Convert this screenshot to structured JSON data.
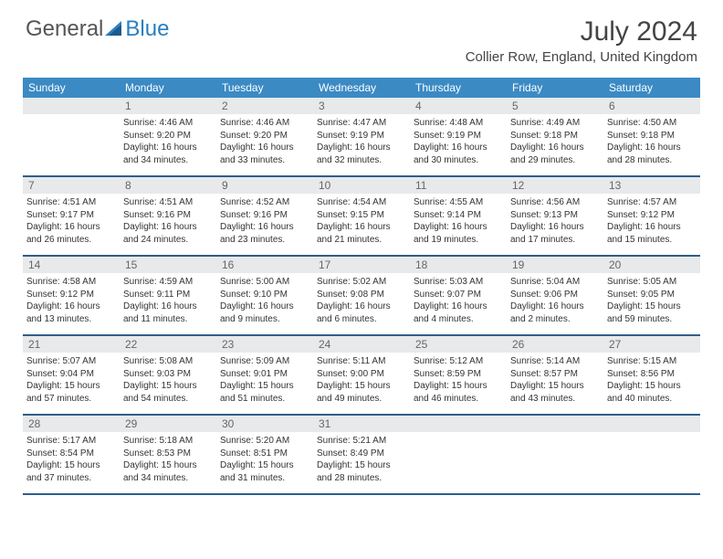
{
  "logo": {
    "general": "General",
    "blue": "Blue"
  },
  "title": {
    "month_year": "July 2024",
    "location": "Collier Row, England, United Kingdom"
  },
  "colors": {
    "header_bg": "#3b8ac4",
    "header_text": "#ffffff",
    "daynum_bg": "#e7e9eb",
    "daynum_text": "#666666",
    "row_divider": "#2f5e8a",
    "logo_blue": "#2a7fbf",
    "logo_gray": "#555555"
  },
  "weekdays": [
    "Sunday",
    "Monday",
    "Tuesday",
    "Wednesday",
    "Thursday",
    "Friday",
    "Saturday"
  ],
  "weeks": [
    {
      "nums": [
        "",
        "1",
        "2",
        "3",
        "4",
        "5",
        "6"
      ],
      "cells": [
        {},
        {
          "sunrise": "Sunrise: 4:46 AM",
          "sunset": "Sunset: 9:20 PM",
          "daylight": "Daylight: 16 hours and 34 minutes."
        },
        {
          "sunrise": "Sunrise: 4:46 AM",
          "sunset": "Sunset: 9:20 PM",
          "daylight": "Daylight: 16 hours and 33 minutes."
        },
        {
          "sunrise": "Sunrise: 4:47 AM",
          "sunset": "Sunset: 9:19 PM",
          "daylight": "Daylight: 16 hours and 32 minutes."
        },
        {
          "sunrise": "Sunrise: 4:48 AM",
          "sunset": "Sunset: 9:19 PM",
          "daylight": "Daylight: 16 hours and 30 minutes."
        },
        {
          "sunrise": "Sunrise: 4:49 AM",
          "sunset": "Sunset: 9:18 PM",
          "daylight": "Daylight: 16 hours and 29 minutes."
        },
        {
          "sunrise": "Sunrise: 4:50 AM",
          "sunset": "Sunset: 9:18 PM",
          "daylight": "Daylight: 16 hours and 28 minutes."
        }
      ]
    },
    {
      "nums": [
        "7",
        "8",
        "9",
        "10",
        "11",
        "12",
        "13"
      ],
      "cells": [
        {
          "sunrise": "Sunrise: 4:51 AM",
          "sunset": "Sunset: 9:17 PM",
          "daylight": "Daylight: 16 hours and 26 minutes."
        },
        {
          "sunrise": "Sunrise: 4:51 AM",
          "sunset": "Sunset: 9:16 PM",
          "daylight": "Daylight: 16 hours and 24 minutes."
        },
        {
          "sunrise": "Sunrise: 4:52 AM",
          "sunset": "Sunset: 9:16 PM",
          "daylight": "Daylight: 16 hours and 23 minutes."
        },
        {
          "sunrise": "Sunrise: 4:54 AM",
          "sunset": "Sunset: 9:15 PM",
          "daylight": "Daylight: 16 hours and 21 minutes."
        },
        {
          "sunrise": "Sunrise: 4:55 AM",
          "sunset": "Sunset: 9:14 PM",
          "daylight": "Daylight: 16 hours and 19 minutes."
        },
        {
          "sunrise": "Sunrise: 4:56 AM",
          "sunset": "Sunset: 9:13 PM",
          "daylight": "Daylight: 16 hours and 17 minutes."
        },
        {
          "sunrise": "Sunrise: 4:57 AM",
          "sunset": "Sunset: 9:12 PM",
          "daylight": "Daylight: 16 hours and 15 minutes."
        }
      ]
    },
    {
      "nums": [
        "14",
        "15",
        "16",
        "17",
        "18",
        "19",
        "20"
      ],
      "cells": [
        {
          "sunrise": "Sunrise: 4:58 AM",
          "sunset": "Sunset: 9:12 PM",
          "daylight": "Daylight: 16 hours and 13 minutes."
        },
        {
          "sunrise": "Sunrise: 4:59 AM",
          "sunset": "Sunset: 9:11 PM",
          "daylight": "Daylight: 16 hours and 11 minutes."
        },
        {
          "sunrise": "Sunrise: 5:00 AM",
          "sunset": "Sunset: 9:10 PM",
          "daylight": "Daylight: 16 hours and 9 minutes."
        },
        {
          "sunrise": "Sunrise: 5:02 AM",
          "sunset": "Sunset: 9:08 PM",
          "daylight": "Daylight: 16 hours and 6 minutes."
        },
        {
          "sunrise": "Sunrise: 5:03 AM",
          "sunset": "Sunset: 9:07 PM",
          "daylight": "Daylight: 16 hours and 4 minutes."
        },
        {
          "sunrise": "Sunrise: 5:04 AM",
          "sunset": "Sunset: 9:06 PM",
          "daylight": "Daylight: 16 hours and 2 minutes."
        },
        {
          "sunrise": "Sunrise: 5:05 AM",
          "sunset": "Sunset: 9:05 PM",
          "daylight": "Daylight: 15 hours and 59 minutes."
        }
      ]
    },
    {
      "nums": [
        "21",
        "22",
        "23",
        "24",
        "25",
        "26",
        "27"
      ],
      "cells": [
        {
          "sunrise": "Sunrise: 5:07 AM",
          "sunset": "Sunset: 9:04 PM",
          "daylight": "Daylight: 15 hours and 57 minutes."
        },
        {
          "sunrise": "Sunrise: 5:08 AM",
          "sunset": "Sunset: 9:03 PM",
          "daylight": "Daylight: 15 hours and 54 minutes."
        },
        {
          "sunrise": "Sunrise: 5:09 AM",
          "sunset": "Sunset: 9:01 PM",
          "daylight": "Daylight: 15 hours and 51 minutes."
        },
        {
          "sunrise": "Sunrise: 5:11 AM",
          "sunset": "Sunset: 9:00 PM",
          "daylight": "Daylight: 15 hours and 49 minutes."
        },
        {
          "sunrise": "Sunrise: 5:12 AM",
          "sunset": "Sunset: 8:59 PM",
          "daylight": "Daylight: 15 hours and 46 minutes."
        },
        {
          "sunrise": "Sunrise: 5:14 AM",
          "sunset": "Sunset: 8:57 PM",
          "daylight": "Daylight: 15 hours and 43 minutes."
        },
        {
          "sunrise": "Sunrise: 5:15 AM",
          "sunset": "Sunset: 8:56 PM",
          "daylight": "Daylight: 15 hours and 40 minutes."
        }
      ]
    },
    {
      "nums": [
        "28",
        "29",
        "30",
        "31",
        "",
        "",
        ""
      ],
      "cells": [
        {
          "sunrise": "Sunrise: 5:17 AM",
          "sunset": "Sunset: 8:54 PM",
          "daylight": "Daylight: 15 hours and 37 minutes."
        },
        {
          "sunrise": "Sunrise: 5:18 AM",
          "sunset": "Sunset: 8:53 PM",
          "daylight": "Daylight: 15 hours and 34 minutes."
        },
        {
          "sunrise": "Sunrise: 5:20 AM",
          "sunset": "Sunset: 8:51 PM",
          "daylight": "Daylight: 15 hours and 31 minutes."
        },
        {
          "sunrise": "Sunrise: 5:21 AM",
          "sunset": "Sunset: 8:49 PM",
          "daylight": "Daylight: 15 hours and 28 minutes."
        },
        {},
        {},
        {}
      ]
    }
  ]
}
